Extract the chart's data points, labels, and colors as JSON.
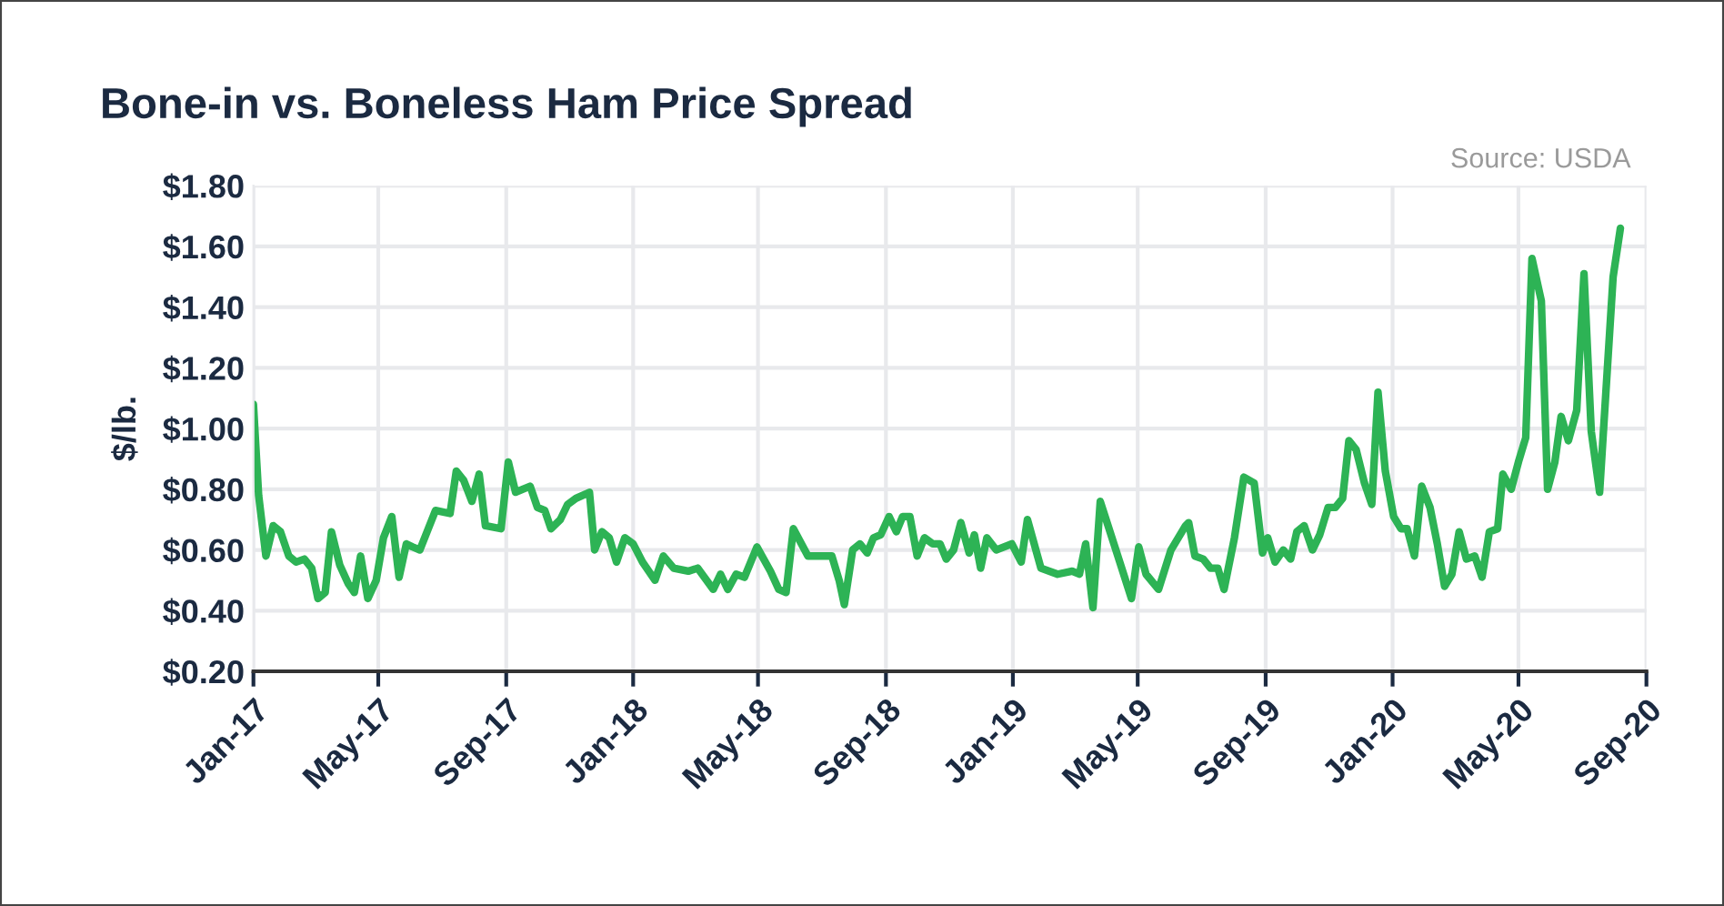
{
  "chart_data": {
    "type": "line",
    "title": "Bone-in vs. Boneless Ham Price Spread",
    "ylabel": "$/lb.",
    "annotations": [
      "Source: USDA"
    ],
    "x": [
      "2017-01-01",
      "2017-01-06",
      "2017-01-13",
      "2017-01-20",
      "2017-01-27",
      "2017-02-04",
      "2017-02-11",
      "2017-02-19",
      "2017-02-26",
      "2017-03-04",
      "2017-03-11",
      "2017-03-17",
      "2017-03-25",
      "2017-04-02",
      "2017-04-08",
      "2017-04-14",
      "2017-04-21",
      "2017-04-29",
      "2017-05-06",
      "2017-05-14",
      "2017-05-21",
      "2017-05-28",
      "2017-06-03",
      "2017-06-10",
      "2017-06-25",
      "2017-07-09",
      "2017-07-15",
      "2017-07-22",
      "2017-07-30",
      "2017-08-06",
      "2017-08-12",
      "2017-08-27",
      "2017-09-03",
      "2017-09-10",
      "2017-09-24",
      "2017-10-01",
      "2017-10-08",
      "2017-10-14",
      "2017-10-23",
      "2017-10-30",
      "2017-11-07",
      "2017-11-20",
      "2017-11-25",
      "2017-12-02",
      "2017-12-09",
      "2017-12-16",
      "2017-12-24",
      "2018-01-01",
      "2018-01-10",
      "2018-01-22",
      "2018-01-30",
      "2018-02-09",
      "2018-02-23",
      "2018-03-04",
      "2018-03-19",
      "2018-03-26",
      "2018-04-02",
      "2018-04-10",
      "2018-04-18",
      "2018-04-30",
      "2018-05-13",
      "2018-05-21",
      "2018-05-28",
      "2018-06-04",
      "2018-06-18",
      "2018-07-11",
      "2018-07-18",
      "2018-07-23",
      "2018-07-31",
      "2018-08-07",
      "2018-08-14",
      "2018-08-20",
      "2018-08-27",
      "2018-09-04",
      "2018-09-11",
      "2018-09-17",
      "2018-09-24",
      "2018-10-01",
      "2018-10-08",
      "2018-10-16",
      "2018-10-23",
      "2018-10-29",
      "2018-11-05",
      "2018-11-12",
      "2018-11-20",
      "2018-11-25",
      "2018-12-01",
      "2018-12-07",
      "2018-12-16",
      "2018-12-31",
      "2019-01-09",
      "2019-01-15",
      "2019-01-28",
      "2019-02-13",
      "2019-02-27",
      "2019-03-06",
      "2019-03-12",
      "2019-03-19",
      "2019-03-26",
      "2019-04-10",
      "2019-04-25",
      "2019-05-02",
      "2019-05-09",
      "2019-05-21",
      "2019-06-02",
      "2019-06-16",
      "2019-06-19",
      "2019-06-25",
      "2019-07-03",
      "2019-07-10",
      "2019-07-17",
      "2019-07-23",
      "2019-08-02",
      "2019-08-11",
      "2019-08-21",
      "2019-08-29",
      "2019-09-03",
      "2019-09-10",
      "2019-09-18",
      "2019-09-25",
      "2019-10-01",
      "2019-10-08",
      "2019-10-16",
      "2019-10-23",
      "2019-10-31",
      "2019-11-07",
      "2019-11-14",
      "2019-11-20",
      "2019-11-27",
      "2019-12-05",
      "2019-12-12",
      "2019-12-18",
      "2019-12-25",
      "2020-01-02",
      "2020-01-09",
      "2020-01-15",
      "2020-01-22",
      "2020-01-29",
      "2020-02-06",
      "2020-02-13",
      "2020-02-20",
      "2020-02-27",
      "2020-03-05",
      "2020-03-12",
      "2020-03-20",
      "2020-03-27",
      "2020-04-03",
      "2020-04-11",
      "2020-04-16",
      "2020-04-24",
      "2020-05-01",
      "2020-05-08",
      "2020-05-14",
      "2020-05-23",
      "2020-05-29",
      "2020-06-05",
      "2020-06-11",
      "2020-06-18",
      "2020-06-26",
      "2020-07-03",
      "2020-07-10",
      "2020-07-18",
      "2020-07-31",
      "2020-08-07"
    ],
    "series": [
      {
        "color": "#2db355",
        "values": [
          1.08,
          0.78,
          0.58,
          0.68,
          0.66,
          0.58,
          0.56,
          0.57,
          0.54,
          0.44,
          0.46,
          0.66,
          0.55,
          0.49,
          0.46,
          0.58,
          0.44,
          0.5,
          0.64,
          0.71,
          0.51,
          0.62,
          0.61,
          0.6,
          0.73,
          0.72,
          0.86,
          0.83,
          0.76,
          0.85,
          0.68,
          0.67,
          0.89,
          0.79,
          0.81,
          0.74,
          0.73,
          0.67,
          0.7,
          0.75,
          0.77,
          0.79,
          0.6,
          0.66,
          0.64,
          0.56,
          0.64,
          0.62,
          0.56,
          0.5,
          0.58,
          0.54,
          0.53,
          0.54,
          0.47,
          0.52,
          0.47,
          0.52,
          0.51,
          0.61,
          0.53,
          0.47,
          0.46,
          0.67,
          0.58,
          0.58,
          0.5,
          0.42,
          0.6,
          0.62,
          0.59,
          0.64,
          0.65,
          0.71,
          0.66,
          0.71,
          0.71,
          0.58,
          0.64,
          0.62,
          0.62,
          0.57,
          0.6,
          0.69,
          0.59,
          0.65,
          0.54,
          0.64,
          0.6,
          0.62,
          0.56,
          0.7,
          0.54,
          0.52,
          0.53,
          0.52,
          0.62,
          0.41,
          0.76,
          0.6,
          0.44,
          0.61,
          0.52,
          0.47,
          0.6,
          0.68,
          0.69,
          0.58,
          0.57,
          0.54,
          0.54,
          0.47,
          0.64,
          0.84,
          0.82,
          0.59,
          0.64,
          0.56,
          0.6,
          0.57,
          0.66,
          0.68,
          0.6,
          0.65,
          0.74,
          0.74,
          0.77,
          0.96,
          0.93,
          0.82,
          0.75,
          1.12,
          0.86,
          0.71,
          0.67,
          0.67,
          0.58,
          0.81,
          0.74,
          0.62,
          0.48,
          0.52,
          0.66,
          0.57,
          0.58,
          0.51,
          0.66,
          0.67,
          0.85,
          0.8,
          0.89,
          0.97,
          1.56,
          1.42,
          0.8,
          0.89,
          1.04,
          0.96,
          1.06,
          1.51,
          0.99,
          0.79,
          1.5,
          1.66
        ]
      }
    ],
    "xlim": [
      "2017-01-01",
      "2020-09-01"
    ],
    "xticks": [
      {
        "value": "2017-01-01",
        "label": "Jan-17"
      },
      {
        "value": "2017-05-01",
        "label": "May-17"
      },
      {
        "value": "2017-09-01",
        "label": "Sep-17"
      },
      {
        "value": "2018-01-01",
        "label": "Jan-18"
      },
      {
        "value": "2018-05-01",
        "label": "May-18"
      },
      {
        "value": "2018-09-01",
        "label": "Sep-18"
      },
      {
        "value": "2019-01-01",
        "label": "Jan-19"
      },
      {
        "value": "2019-05-01",
        "label": "May-19"
      },
      {
        "value": "2019-09-01",
        "label": "Sep-19"
      },
      {
        "value": "2020-01-01",
        "label": "Jan-20"
      },
      {
        "value": "2020-05-01",
        "label": "May-20"
      },
      {
        "value": "2020-09-01",
        "label": "Sep-20"
      }
    ],
    "ylim": [
      0.2,
      1.8
    ],
    "yticks": [
      {
        "value": 0.2,
        "label": "$0.20"
      },
      {
        "value": 0.4,
        "label": "$0.40"
      },
      {
        "value": 0.6,
        "label": "$0.60"
      },
      {
        "value": 0.8,
        "label": "$0.80"
      },
      {
        "value": 1.0,
        "label": "$1.00"
      },
      {
        "value": 1.2,
        "label": "$1.20"
      },
      {
        "value": 1.4,
        "label": "$1.40"
      },
      {
        "value": 1.6,
        "label": "$1.60"
      },
      {
        "value": 1.8,
        "label": "$1.80"
      }
    ],
    "grid": true,
    "legend": false
  }
}
